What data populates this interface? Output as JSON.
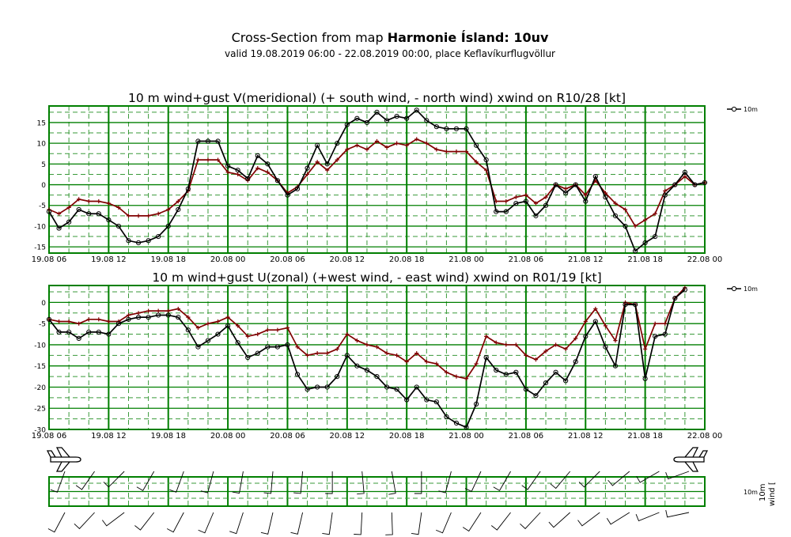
{
  "header": {
    "title_prefix": "Cross-Section from map ",
    "title_bold": "Harmonie Ísland: 10uv",
    "subtitle": "valid 19.08.2019 06:00 - 22.08.2019 00:00, place Keflavíkurflugvöllur"
  },
  "chart_data": [
    {
      "type": "line",
      "title": "10 m wind+gust V(meridional) (+ south wind, - north wind) xwind on R10/28 [kt]",
      "x_start": "19.08 06",
      "x_step_hours": 1,
      "x_tick_labels": [
        "19.08 06",
        "19.08 12",
        "19.08 18",
        "20.08 00",
        "20.08 06",
        "20.08 12",
        "20.08 18",
        "21.08 00",
        "21.08 06",
        "21.08 12",
        "21.08 18",
        "22.08 00"
      ],
      "y_ticks": [
        -15,
        -10,
        -5,
        0,
        5,
        10,
        15
      ],
      "ylim": [
        -16.5,
        19
      ],
      "legend": "10m",
      "series": [
        {
          "name": "10m",
          "color": "#000000",
          "marker": "circle",
          "values": [
            -6.5,
            -10.5,
            -9,
            -6,
            -7,
            -7,
            -8.5,
            -10,
            -13.5,
            -14,
            -13.5,
            -12.5,
            -10,
            -6,
            -1,
            10.5,
            10.5,
            10.5,
            4.5,
            3.5,
            1.5,
            7,
            5,
            1,
            -2.5,
            -1,
            4,
            9.5,
            5,
            10,
            14.5,
            16,
            15,
            17.5,
            15.5,
            16.5,
            16,
            18,
            15.5,
            14,
            13.5,
            13.5,
            13.5,
            9.5,
            6,
            -6.5,
            -6.5,
            -4.5,
            -4,
            -7.5,
            -5,
            0,
            -2,
            0,
            -4,
            2,
            -3,
            -7.5,
            -10,
            -16,
            -14,
            -12.5,
            -2.5,
            0,
            3,
            0,
            0.5
          ]
        },
        {
          "color": "#800000",
          "marker": "plus",
          "values": [
            -6,
            -7,
            -5.5,
            -3.5,
            -4,
            -4,
            -4.5,
            -5.5,
            -7.5,
            -7.5,
            -7.5,
            -7,
            -6,
            -4,
            -1.5,
            6,
            6,
            6,
            3,
            2.5,
            1,
            4,
            3,
            1,
            -2,
            -0.5,
            2.5,
            5.5,
            3.5,
            6,
            8.5,
            9.5,
            8.5,
            10.5,
            9,
            10,
            9.5,
            11,
            10,
            8.5,
            8,
            8,
            8,
            5.5,
            3.5,
            -4,
            -4,
            -3,
            -2.5,
            -4.5,
            -3,
            0,
            -1,
            0,
            -2.5,
            1,
            -2,
            -4.5,
            -6,
            -10,
            -8.5,
            -7,
            -1.5,
            0,
            2,
            0,
            0.5
          ]
        }
      ]
    },
    {
      "type": "line",
      "title": "10 m wind+gust U(zonal) (+west wind, - east wind) xwind on R01/19 [kt]",
      "x_start": "19.08 06",
      "x_step_hours": 1,
      "x_tick_labels": [
        "19.08 06",
        "19.08 12",
        "19.08 18",
        "20.08 00",
        "20.08 06",
        "20.08 12",
        "20.08 18",
        "21.08 00",
        "21.08 06",
        "21.08 12",
        "21.08 18",
        "22.08 00"
      ],
      "y_ticks": [
        -30,
        -25,
        -20,
        -15,
        -10,
        -5,
        0
      ],
      "ylim": [
        -30,
        4
      ],
      "legend": "10m",
      "series": [
        {
          "name": "10m",
          "color": "#000000",
          "marker": "circle",
          "values": [
            -4,
            -7,
            -7,
            -8.5,
            -7,
            -7,
            -7.5,
            -5,
            -4,
            -3.5,
            -3.5,
            -3,
            -3,
            -3.5,
            -6.5,
            -10.5,
            -9,
            -7.5,
            -5.5,
            -9.5,
            -13,
            -12,
            -10.5,
            -10.5,
            -10,
            -17,
            -20.5,
            -20,
            -20,
            -17.5,
            -12.5,
            -15,
            -16,
            -17.5,
            -20,
            -20.5,
            -23,
            -20,
            -23,
            -23.5,
            -27,
            -28.5,
            -29.5,
            -24,
            -13,
            -16,
            -17,
            -16.5,
            -20.5,
            -22,
            -19,
            -16.5,
            -18.5,
            -14,
            -8,
            -4.5,
            -10.5,
            -15,
            -0.5,
            -0.5,
            -18,
            -8,
            -7.5,
            1,
            3
          ]
        },
        {
          "color": "#800000",
          "marker": "plus",
          "values": [
            -4,
            -4.5,
            -4.5,
            -5,
            -4,
            -4,
            -4.5,
            -4.5,
            -3,
            -2.5,
            -2,
            -2,
            -2,
            -1.5,
            -3.5,
            -6,
            -5,
            -4.5,
            -3.5,
            -5.5,
            -8,
            -7.5,
            -6.5,
            -6.5,
            -6,
            -10.5,
            -12.5,
            -12,
            -12,
            -11,
            -7.5,
            -9,
            -10,
            -10.5,
            -12,
            -12.5,
            -14,
            -12,
            -14,
            -14.5,
            -16.5,
            -17.5,
            -18,
            -14.5,
            -8,
            -9.5,
            -10,
            -10,
            -12.5,
            -13.5,
            -11.5,
            -10,
            -11,
            -8.5,
            -4.5,
            -1.5,
            -5.5,
            -9,
            0,
            -0.5,
            -11,
            -5,
            -5,
            1,
            3.5
          ]
        }
      ]
    },
    {
      "type": "wind-barbs",
      "legend": "10m",
      "legend_axis": "wind [",
      "rows": 2,
      "columns": 22
    }
  ]
}
